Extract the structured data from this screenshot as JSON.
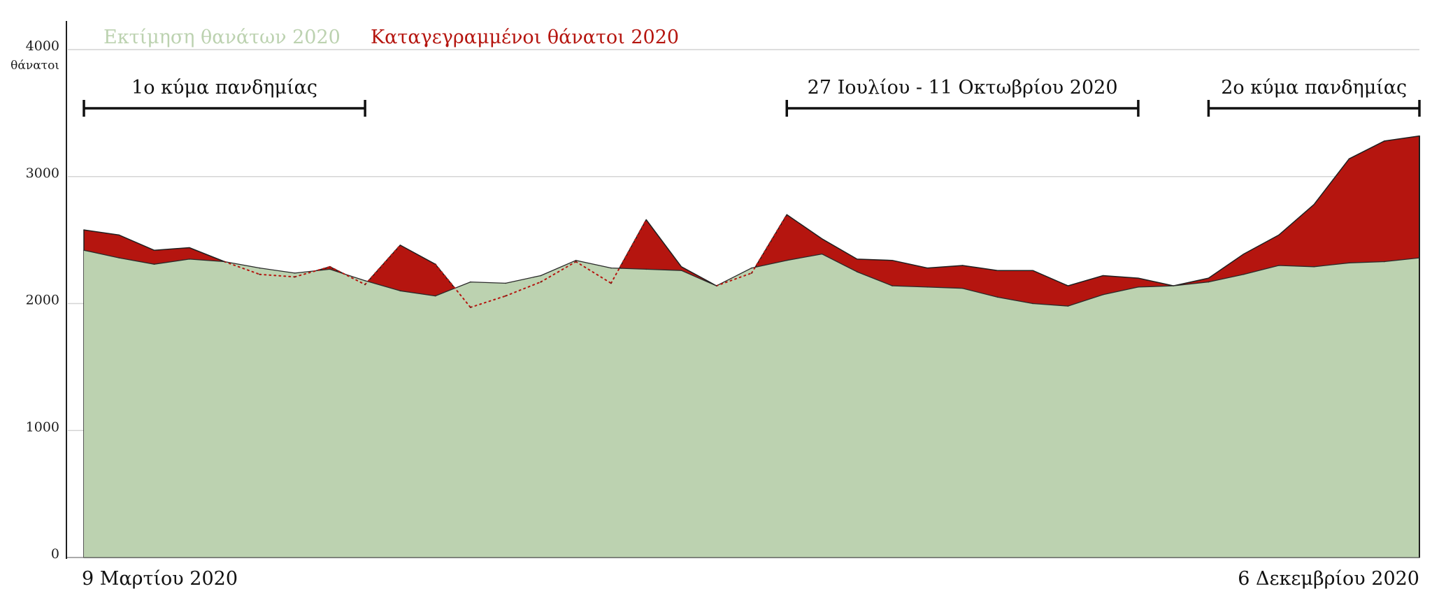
{
  "chart_data": {
    "type": "area",
    "ylim": [
      0,
      4000
    ],
    "yticks": [
      0,
      1000,
      2000,
      3000,
      4000
    ],
    "y_unit_label": "θάνατοι",
    "grid": true,
    "legend_position": "top-left",
    "x_start_label": "9 Μαρτίου 2020",
    "x_end_label": "6 Δεκεμβρίου 2020",
    "weeks": 39,
    "colors": {
      "expected": "#bcd2b0",
      "recorded": "#b5150f",
      "outline": "#1f1f1f",
      "grid": "#d4d4d4"
    },
    "series": [
      {
        "name": "Εκτίμηση θανάτων 2020",
        "color": "#bcd2b0",
        "values": [
          2420,
          2360,
          2310,
          2350,
          2330,
          2280,
          2240,
          2270,
          2180,
          2100,
          2060,
          2170,
          2160,
          2220,
          2340,
          2280,
          2270,
          2260,
          2140,
          2280,
          2340,
          2390,
          2250,
          2140,
          2130,
          2120,
          2050,
          2000,
          1980,
          2070,
          2130,
          2140,
          2170,
          2230,
          2300,
          2290,
          2320,
          2330,
          2360
        ]
      },
      {
        "name": "Καταγεγραμμένοι θάνατοι 2020",
        "color": "#b5150f",
        "values": [
          2580,
          2540,
          2420,
          2440,
          2330,
          2230,
          2210,
          2290,
          2150,
          2460,
          2310,
          1970,
          2060,
          2170,
          2330,
          2160,
          2660,
          2290,
          2140,
          2240,
          2700,
          2510,
          2350,
          2340,
          2280,
          2300,
          2260,
          2260,
          2140,
          2220,
          2200,
          2140,
          2200,
          2390,
          2540,
          2780,
          3140,
          3280,
          3320
        ]
      }
    ],
    "annotations": [
      {
        "label": "1ο κύμα πανδημίας",
        "from_week": 0,
        "to_week": 8
      },
      {
        "label": "27 Ιουλίου - 11 Οκτωβρίου 2020",
        "from_week": 20,
        "to_week": 30
      },
      {
        "label": "2ο κύμα πανδημίας",
        "from_week": 32,
        "to_week": 38
      }
    ]
  }
}
